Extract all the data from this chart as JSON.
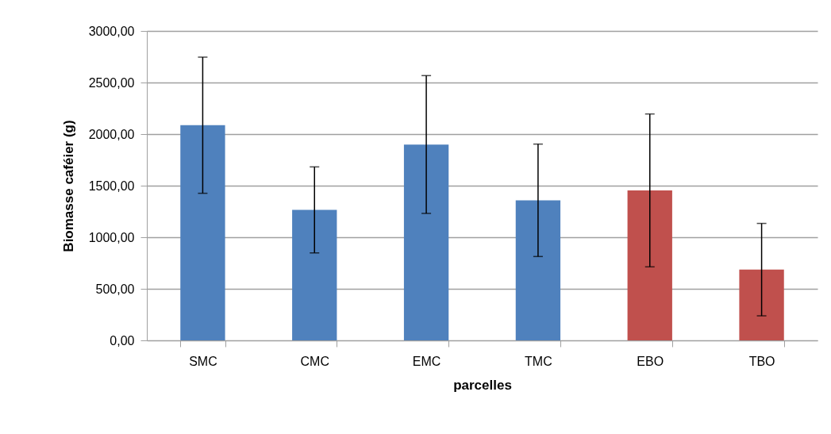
{
  "chart_data": {
    "type": "bar",
    "xlabel": "parcelles",
    "ylabel": "Biomasse caféier (g)",
    "categories": [
      "SMC",
      "CMC",
      "EMC",
      "TMC",
      "EBO",
      "TBO"
    ],
    "values": [
      2086,
      1265,
      1899,
      1358,
      1454,
      686
    ],
    "errors": [
      660,
      417,
      668,
      545,
      741,
      448
    ],
    "colors": [
      "#4f81bd",
      "#4f81bd",
      "#4f81bd",
      "#4f81bd",
      "#c0504d",
      "#c0504d"
    ],
    "ylim": [
      0,
      3000
    ],
    "yticks": [
      {
        "value": 0,
        "label": "0,00"
      },
      {
        "value": 500,
        "label": "500,00"
      },
      {
        "value": 1000,
        "label": "1000,00"
      },
      {
        "value": 1500,
        "label": "1500,00"
      },
      {
        "value": 2000,
        "label": "2000,00"
      },
      {
        "value": 2500,
        "label": "2500,00"
      },
      {
        "value": 3000,
        "label": "3000,00"
      }
    ],
    "grid": "y"
  }
}
